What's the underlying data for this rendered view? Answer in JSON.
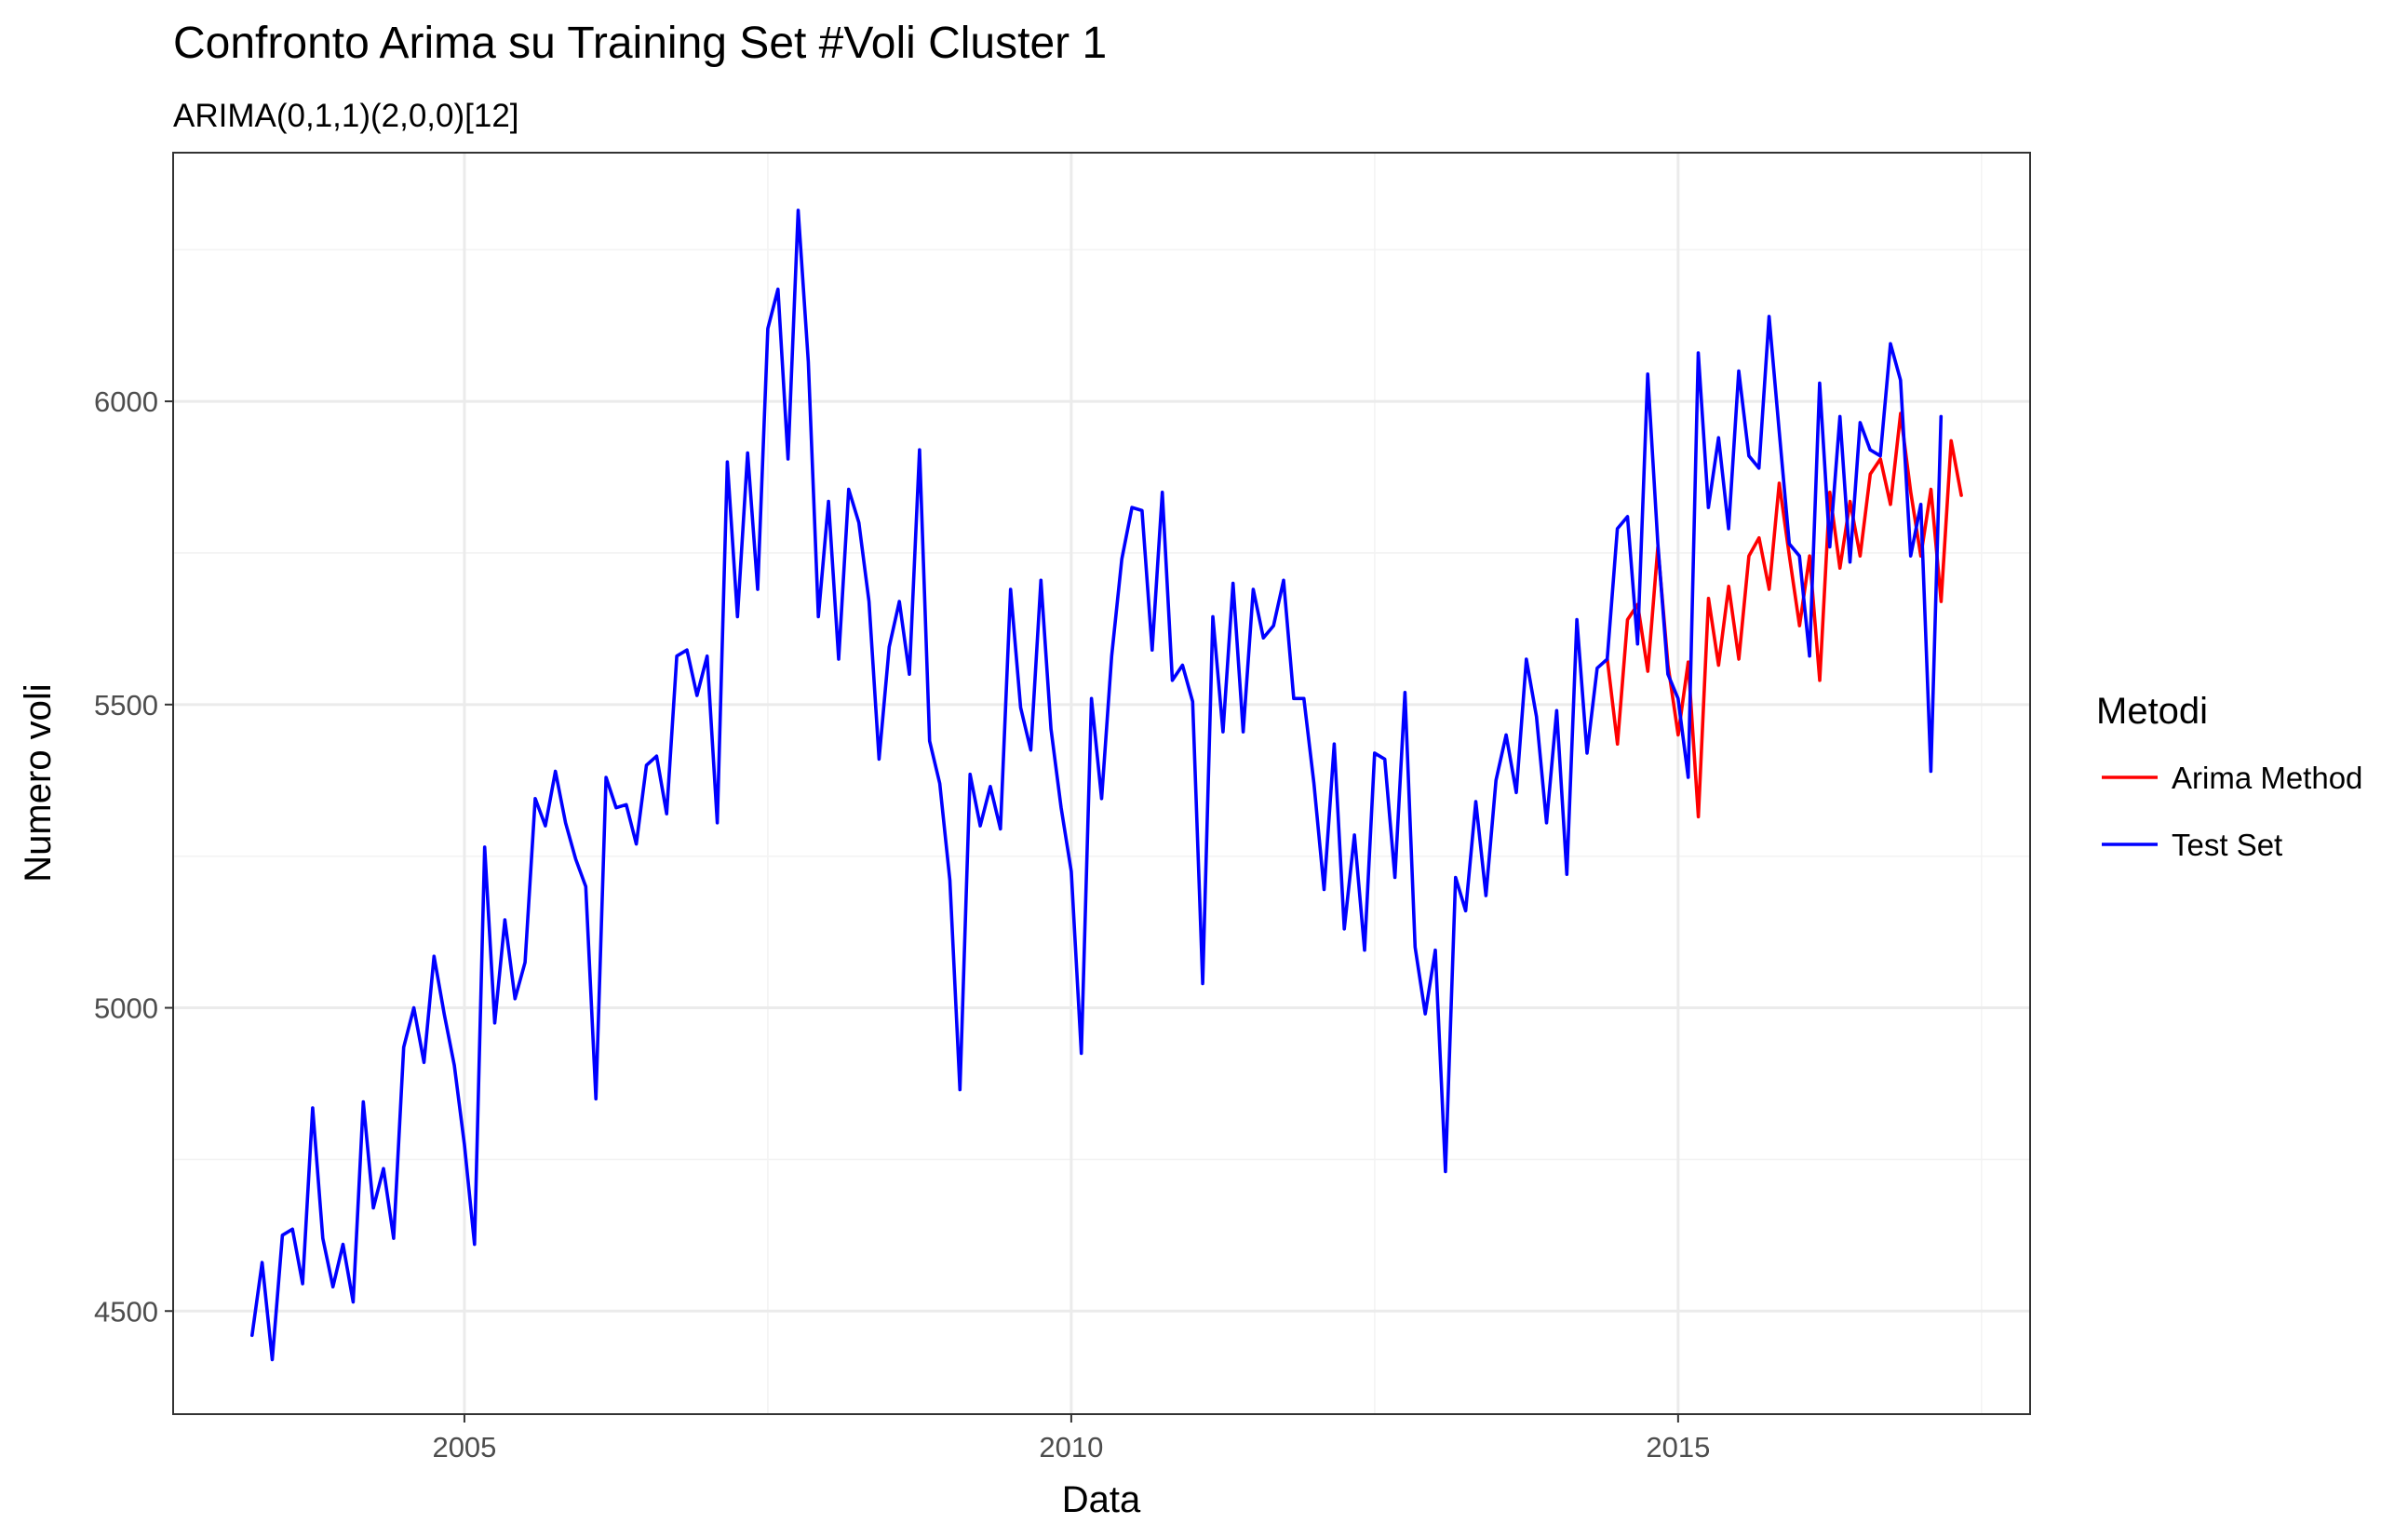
{
  "chart_data": {
    "type": "line",
    "title": "Confronto Arima su Training Set #Voli Cluster  1",
    "subtitle": "ARIMA(0,1,1)(2,0,0)[12]",
    "xlabel": "Data",
    "ylabel": "Numero voli",
    "xlim": [
      2002.6,
      2017.9
    ],
    "ylim": [
      4330,
      6410
    ],
    "x_ticks": [
      2005,
      2010,
      2015
    ],
    "x_tick_labels": [
      "2005",
      "2010",
      "2015"
    ],
    "y_ticks": [
      4500,
      5000,
      5500,
      6000
    ],
    "y_tick_labels": [
      "4500",
      "5000",
      "5500",
      "6000"
    ],
    "grid": true,
    "legend": {
      "title": "Metodi",
      "position": "right"
    },
    "series": [
      {
        "name": "Arima Method",
        "color": "#ff0000",
        "x_start": 2014.4167,
        "x_step": 0.08333,
        "values": [
          5575,
          5435,
          5640,
          5665,
          5555,
          5760,
          5565,
          5450,
          5570,
          5315,
          5675,
          5565,
          5695,
          5575,
          5745,
          5775,
          5690,
          5865,
          5745,
          5630,
          5745,
          5540,
          5850,
          5725,
          5835,
          5745,
          5880,
          5905,
          5830,
          5980,
          5850,
          5745,
          5855,
          5670,
          5935,
          5845
        ]
      },
      {
        "name": "Test Set",
        "color": "#0000ff",
        "x_start": 2003.25,
        "x_step": 0.08333,
        "values": [
          4460,
          4580,
          4420,
          4625,
          4635,
          4545,
          4835,
          4620,
          4540,
          4610,
          4515,
          4845,
          4670,
          4735,
          4620,
          4935,
          5000,
          4910,
          5085,
          4990,
          4905,
          4775,
          4610,
          5265,
          4975,
          5145,
          5015,
          5075,
          5345,
          5300,
          5390,
          5305,
          5245,
          5200,
          4850,
          5380,
          5330,
          5335,
          5270,
          5400,
          5415,
          5320,
          5580,
          5590,
          5515,
          5580,
          5305,
          5900,
          5645,
          5915,
          5690,
          6120,
          6185,
          5905,
          6315,
          6065,
          5645,
          5835,
          5575,
          5855,
          5800,
          5670,
          5410,
          5595,
          5670,
          5550,
          5920,
          5440,
          5370,
          5210,
          4865,
          5385,
          5300,
          5365,
          5295,
          5690,
          5495,
          5425,
          5705,
          5460,
          5330,
          5225,
          4925,
          5510,
          5345,
          5580,
          5740,
          5825,
          5820,
          5590,
          5850,
          5540,
          5565,
          5505,
          5040,
          5645,
          5455,
          5700,
          5455,
          5690,
          5610,
          5630,
          5705,
          5510,
          5510,
          5370,
          5195,
          5435,
          5130,
          5285,
          5095,
          5420,
          5410,
          5215,
          5520,
          5100,
          4990,
          5095,
          4730,
          5215,
          5160,
          5340,
          5185,
          5375,
          5450,
          5355,
          5575,
          5480,
          5305,
          5490,
          5220,
          5640,
          5420,
          5560,
          5575,
          5790,
          5810,
          5600,
          6045,
          5765,
          5550,
          5510,
          5380,
          6080,
          5825,
          5940,
          5790,
          6050,
          5910,
          5890,
          6140,
          5950,
          5765,
          5745,
          5580,
          6030,
          5760,
          5975,
          5735,
          5965,
          5920,
          5910,
          6095,
          6035,
          5745,
          5830,
          5390,
          5975
        ]
      }
    ]
  }
}
